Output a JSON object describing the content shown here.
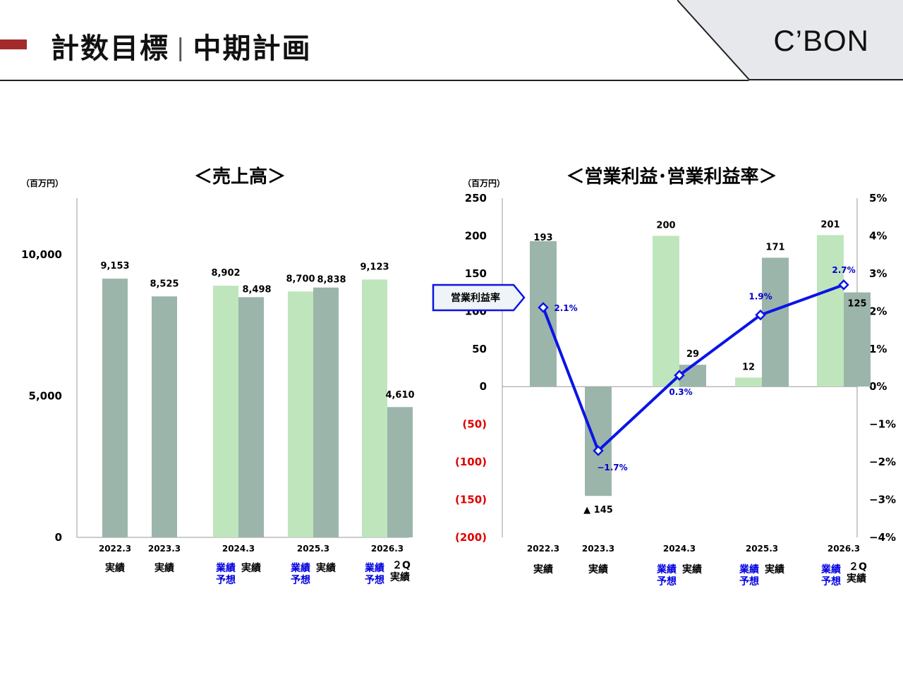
{
  "header": {
    "title_left": "計数目標",
    "title_sep": "|",
    "title_right": "中期計画",
    "logo": "C’BON"
  },
  "colors": {
    "actual": "#9cb5ab",
    "forecast": "#bfe5bd",
    "line": "#0a14e6",
    "negative_tick": "#e00000",
    "accent": "#a32a2a",
    "logo_panel": "#e6e8ec"
  },
  "chart_data": [
    {
      "type": "bar",
      "title": "＜売上高＞",
      "unit": "（百万円）",
      "ylim": [
        0,
        12000
      ],
      "yticks": [
        {
          "value": 0,
          "label": "0"
        },
        {
          "value": 5000,
          "label": "5,000"
        },
        {
          "value": 10000,
          "label": "10,000"
        }
      ],
      "categories": [
        {
          "period": "2022.3",
          "bars": [
            {
              "kind": "actual",
              "value": 9153,
              "label": "9,153"
            }
          ]
        },
        {
          "period": "2023.3",
          "bars": [
            {
              "kind": "actual",
              "value": 8525,
              "label": "8,525"
            }
          ]
        },
        {
          "period": "2024.3",
          "bars": [
            {
              "kind": "forecast",
              "value": 8902,
              "label": "8,902"
            },
            {
              "kind": "actual",
              "value": 8498,
              "label": "8,498"
            }
          ]
        },
        {
          "period": "2025.3",
          "bars": [
            {
              "kind": "forecast",
              "value": 8700,
              "label": "8,700"
            },
            {
              "kind": "actual",
              "value": 8838,
              "label": "8,838"
            }
          ]
        },
        {
          "period": "2026.3",
          "bars": [
            {
              "kind": "forecast",
              "value": 9123,
              "label": "9,123"
            },
            {
              "kind": "actual_2q",
              "value": 4610,
              "label": "4,610"
            }
          ]
        }
      ]
    },
    {
      "type": "bar+line",
      "title": "＜営業利益･営業利益率＞",
      "unit": "（百万円）",
      "ylim": [
        -200,
        250
      ],
      "y2lim": [
        -4,
        5
      ],
      "yticks": [
        {
          "value": 250,
          "label": "250"
        },
        {
          "value": 200,
          "label": "200"
        },
        {
          "value": 150,
          "label": "150"
        },
        {
          "value": 100,
          "label": "100"
        },
        {
          "value": 50,
          "label": "50"
        },
        {
          "value": 0,
          "label": "0"
        },
        {
          "value": -50,
          "label": "(50)"
        },
        {
          "value": -100,
          "label": "(100)"
        },
        {
          "value": -150,
          "label": "(150)"
        },
        {
          "value": -200,
          "label": "(200)"
        }
      ],
      "y2ticks": [
        {
          "value": 5,
          "label": "5%"
        },
        {
          "value": 4,
          "label": "4%"
        },
        {
          "value": 3,
          "label": "3%"
        },
        {
          "value": 2,
          "label": "2%"
        },
        {
          "value": 1,
          "label": "1%"
        },
        {
          "value": 0,
          "label": "0%"
        },
        {
          "value": -1,
          "label": "−1%"
        },
        {
          "value": -2,
          "label": "−2%"
        },
        {
          "value": -3,
          "label": "−3%"
        },
        {
          "value": -4,
          "label": "−4%"
        }
      ],
      "categories": [
        {
          "period": "2022.3",
          "bars": [
            {
              "kind": "actual",
              "value": 193,
              "label": "193"
            }
          ]
        },
        {
          "period": "2023.3",
          "bars": [
            {
              "kind": "actual",
              "value": -145,
              "label": "▲ 145"
            }
          ]
        },
        {
          "period": "2024.3",
          "bars": [
            {
              "kind": "forecast",
              "value": 200,
              "label": "200"
            },
            {
              "kind": "actual",
              "value": 29,
              "label": "29"
            }
          ]
        },
        {
          "period": "2025.3",
          "bars": [
            {
              "kind": "forecast",
              "value": 12,
              "label": "12"
            },
            {
              "kind": "actual",
              "value": 171,
              "label": "171"
            }
          ]
        },
        {
          "period": "2026.3",
          "bars": [
            {
              "kind": "forecast",
              "value": 201,
              "label": "201"
            },
            {
              "kind": "actual_2q",
              "value": 125,
              "label": "125"
            }
          ]
        }
      ],
      "line_series": {
        "name": "営業利益率",
        "values": [
          2.1,
          -1.7,
          0.3,
          1.9,
          2.7
        ],
        "labels": [
          "2.1%",
          "−1.7%",
          "0.3%",
          "1.9%",
          "2.7%"
        ]
      }
    }
  ],
  "xsub_labels": {
    "actual": "実績",
    "forecast_line1": "業績",
    "forecast_line2": "予想",
    "q2_line1": "２Q",
    "q2_line2": "実績"
  }
}
